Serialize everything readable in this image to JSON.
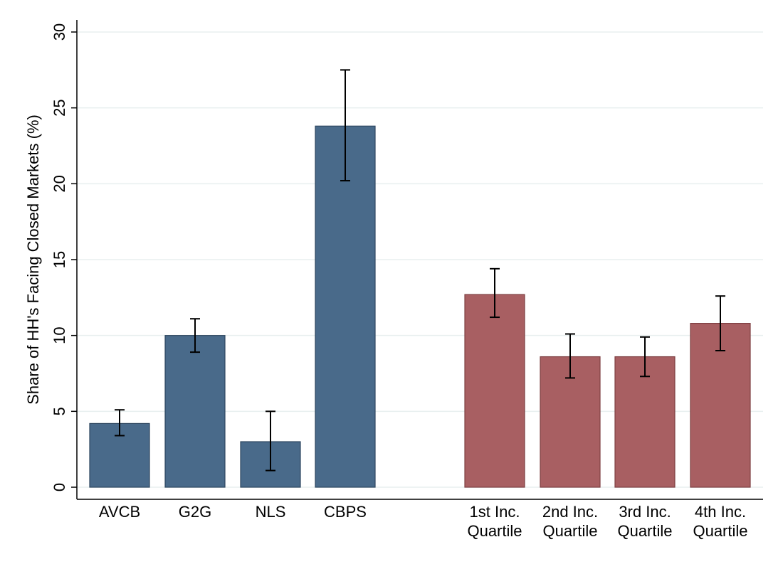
{
  "chart_data": {
    "type": "bar",
    "title": "",
    "xlabel": "",
    "ylabel": "Share of HH's Facing Closed Markets (%)",
    "ylim": [
      0,
      30
    ],
    "yticks": [
      0,
      5,
      10,
      15,
      20,
      25,
      30
    ],
    "grid": true,
    "legend": "none",
    "categories": [
      {
        "label": [
          "AVCB"
        ],
        "value": 4.2,
        "ci": [
          3.4,
          5.1
        ],
        "group": "blue"
      },
      {
        "label": [
          "G2G"
        ],
        "value": 10.0,
        "ci": [
          8.9,
          11.1
        ],
        "group": "blue"
      },
      {
        "label": [
          "NLS"
        ],
        "value": 3.0,
        "ci": [
          1.1,
          5.0
        ],
        "group": "blue"
      },
      {
        "label": [
          "CBPS"
        ],
        "value": 23.8,
        "ci": [
          20.2,
          27.5
        ],
        "group": "blue"
      },
      {
        "label": [
          "1st Inc.",
          "Quartile"
        ],
        "value": 12.7,
        "ci": [
          11.2,
          14.4
        ],
        "group": "red"
      },
      {
        "label": [
          "2nd Inc.",
          "Quartile"
        ],
        "value": 8.6,
        "ci": [
          7.2,
          10.1
        ],
        "group": "red"
      },
      {
        "label": [
          "3rd Inc.",
          "Quartile"
        ],
        "value": 8.6,
        "ci": [
          7.3,
          9.9
        ],
        "group": "red"
      },
      {
        "label": [
          "4th Inc.",
          "Quartile"
        ],
        "value": 10.8,
        "ci": [
          9.0,
          12.6
        ],
        "group": "red"
      }
    ],
    "colors": {
      "blue": "#496a8a",
      "blue_stroke": "#2e4760",
      "red": "#a85f62",
      "red_stroke": "#7e3f42",
      "grid": "#e8efef",
      "axis": "#000000"
    }
  }
}
